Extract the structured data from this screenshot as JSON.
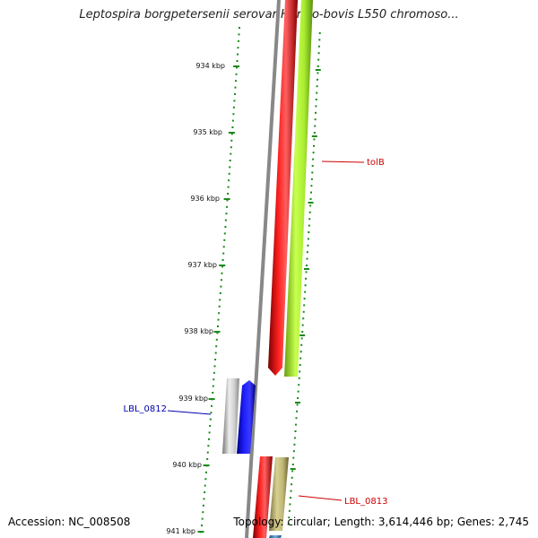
{
  "title": "Leptospira borgpetersenii serovar Hardjo-bovis L550 chromoso...",
  "footer": {
    "accession": "Accession: NC_008508",
    "stats": "Topology: circular; Length: 3,614,446 bp; Genes: 2,745"
  },
  "ruler": {
    "ticks": [
      "934 kbp",
      "935 kbp",
      "936 kbp",
      "937 kbp",
      "938 kbp",
      "939 kbp",
      "940 kbp",
      "941 kbp"
    ]
  },
  "features": [
    {
      "label": "tolB",
      "color": "#cc0000"
    },
    {
      "label": "LBL_0812",
      "color": "#0000aa"
    },
    {
      "label": "LBL_0813",
      "color": "#cc0000"
    }
  ],
  "colors": {
    "ruler": "#1a8a1a",
    "backbone": "#888888",
    "red_track": "#ee0000",
    "green_track": "#9ee82a",
    "blue_track": "#0000ee",
    "grey_track": "#bbbbbb",
    "tan_track": "#b8b070",
    "teal_track": "#4a90c8"
  }
}
